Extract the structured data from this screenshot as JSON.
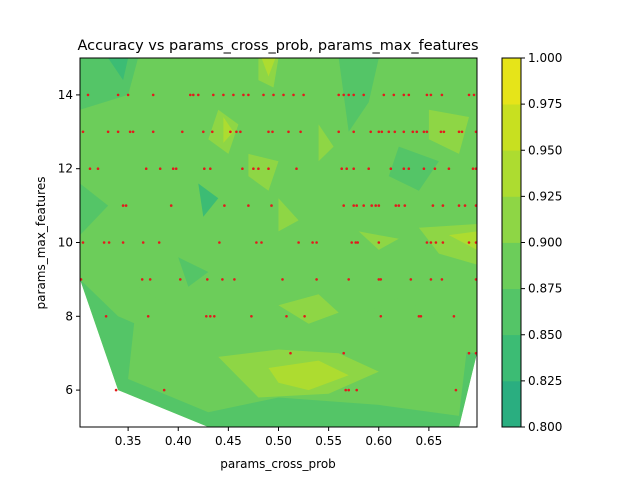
{
  "chart_data": {
    "type": "contour",
    "title": "Accuracy vs params_cross_prob, params_max_features",
    "xlabel": "params_cross_prob",
    "ylabel": "params_max_features",
    "xlim": [
      0.302,
      0.698
    ],
    "ylim": [
      5,
      15
    ],
    "x_ticks": [
      0.35,
      0.4,
      0.45,
      0.5,
      0.55,
      0.6,
      0.65
    ],
    "x_tick_labels": [
      "0.35",
      "0.40",
      "0.45",
      "0.50",
      "0.55",
      "0.60",
      "0.65"
    ],
    "y_ticks": [
      6,
      8,
      10,
      12,
      14
    ],
    "y_tick_labels": [
      "6",
      "8",
      "10",
      "12",
      "14"
    ],
    "colorbar": {
      "levels": [
        0.8,
        0.825,
        0.85,
        0.875,
        0.9,
        0.925,
        0.95,
        0.975,
        1.0
      ],
      "tick_labels": [
        "0.800",
        "0.825",
        "0.850",
        "0.875",
        "0.900",
        "0.925",
        "0.950",
        "0.975",
        "1.000"
      ],
      "colors": [
        "#2aae80",
        "#3cbc74",
        "#54c567",
        "#6ccd5a",
        "#8ed645",
        "#addc30",
        "#c8e020",
        "#e6e419"
      ]
    },
    "hull": [
      [
        0.302,
        9.0
      ],
      [
        0.302,
        15.0
      ],
      [
        0.698,
        15.0
      ],
      [
        0.698,
        7.0
      ],
      [
        0.68,
        5.0
      ],
      [
        0.43,
        5.0
      ],
      [
        0.34,
        6.0
      ]
    ],
    "patches": [
      {
        "level": 2,
        "points": [
          [
            0.302,
            9.0
          ],
          [
            0.34,
            8.0
          ],
          [
            0.4,
            7.3
          ],
          [
            0.48,
            7.2
          ],
          [
            0.56,
            7.5
          ],
          [
            0.64,
            7.2
          ],
          [
            0.698,
            7.0
          ],
          [
            0.68,
            5.0
          ],
          [
            0.43,
            5.0
          ],
          [
            0.34,
            6.0
          ]
        ]
      },
      {
        "level": 3,
        "points": [
          [
            0.36,
            8.8
          ],
          [
            0.42,
            7.8
          ],
          [
            0.48,
            7.6
          ],
          [
            0.56,
            7.8
          ],
          [
            0.62,
            8.5
          ],
          [
            0.69,
            7.6
          ],
          [
            0.68,
            5.3
          ],
          [
            0.6,
            5.6
          ],
          [
            0.5,
            5.8
          ],
          [
            0.43,
            5.4
          ],
          [
            0.35,
            6.3
          ]
        ]
      },
      {
        "level": 4,
        "points": [
          [
            0.44,
            6.9
          ],
          [
            0.5,
            7.1
          ],
          [
            0.56,
            7.0
          ],
          [
            0.6,
            6.5
          ],
          [
            0.55,
            5.9
          ],
          [
            0.48,
            5.8
          ]
        ]
      },
      {
        "level": 5,
        "points": [
          [
            0.49,
            6.6
          ],
          [
            0.54,
            6.8
          ],
          [
            0.57,
            6.4
          ],
          [
            0.53,
            6.0
          ],
          [
            0.5,
            6.2
          ]
        ]
      },
      {
        "level": 4,
        "points": [
          [
            0.5,
            8.3
          ],
          [
            0.54,
            8.6
          ],
          [
            0.56,
            8.1
          ],
          [
            0.53,
            7.8
          ]
        ]
      },
      {
        "level": 2,
        "points": [
          [
            0.302,
            15.0
          ],
          [
            0.36,
            15.0
          ],
          [
            0.35,
            14.0
          ],
          [
            0.302,
            13.6
          ]
        ]
      },
      {
        "level": 1,
        "points": [
          [
            0.33,
            15.0
          ],
          [
            0.35,
            15.0
          ],
          [
            0.345,
            14.4
          ]
        ]
      },
      {
        "level": 2,
        "points": [
          [
            0.56,
            15.0
          ],
          [
            0.6,
            15.0
          ],
          [
            0.59,
            13.8
          ],
          [
            0.57,
            13.0
          ]
        ]
      },
      {
        "level": 2,
        "points": [
          [
            0.302,
            11.6
          ],
          [
            0.33,
            11.0
          ],
          [
            0.302,
            10.2
          ]
        ]
      },
      {
        "level": 1,
        "points": [
          [
            0.42,
            11.6
          ],
          [
            0.44,
            11.2
          ],
          [
            0.425,
            10.7
          ]
        ]
      },
      {
        "level": 2,
        "points": [
          [
            0.62,
            12.6
          ],
          [
            0.66,
            12.2
          ],
          [
            0.64,
            11.4
          ],
          [
            0.61,
            11.8
          ]
        ]
      },
      {
        "level": 2,
        "points": [
          [
            0.4,
            9.6
          ],
          [
            0.43,
            9.2
          ],
          [
            0.41,
            8.8
          ]
        ]
      },
      {
        "level": 4,
        "points": [
          [
            0.48,
            15.0
          ],
          [
            0.5,
            15.0
          ],
          [
            0.495,
            14.2
          ],
          [
            0.48,
            14.4
          ]
        ]
      },
      {
        "level": 5,
        "points": [
          [
            0.483,
            15.0
          ],
          [
            0.497,
            15.0
          ],
          [
            0.49,
            14.5
          ]
        ]
      },
      {
        "level": 4,
        "points": [
          [
            0.44,
            13.6
          ],
          [
            0.46,
            13.2
          ],
          [
            0.45,
            12.4
          ],
          [
            0.43,
            12.8
          ]
        ]
      },
      {
        "level": 5,
        "points": [
          [
            0.445,
            13.4
          ],
          [
            0.455,
            13.0
          ],
          [
            0.445,
            12.7
          ]
        ]
      },
      {
        "level": 4,
        "points": [
          [
            0.47,
            12.4
          ],
          [
            0.5,
            12.2
          ],
          [
            0.49,
            11.4
          ],
          [
            0.47,
            11.8
          ]
        ]
      },
      {
        "level": 4,
        "points": [
          [
            0.54,
            13.2
          ],
          [
            0.555,
            12.6
          ],
          [
            0.54,
            12.2
          ]
        ]
      },
      {
        "level": 4,
        "points": [
          [
            0.65,
            13.6
          ],
          [
            0.69,
            13.4
          ],
          [
            0.68,
            12.4
          ],
          [
            0.65,
            12.8
          ]
        ]
      },
      {
        "level": 4,
        "points": [
          [
            0.58,
            10.3
          ],
          [
            0.62,
            10.1
          ],
          [
            0.6,
            9.8
          ]
        ]
      },
      {
        "level": 4,
        "points": [
          [
            0.64,
            10.4
          ],
          [
            0.698,
            10.5
          ],
          [
            0.698,
            9.4
          ],
          [
            0.66,
            9.7
          ]
        ]
      },
      {
        "level": 5,
        "points": [
          [
            0.67,
            10.2
          ],
          [
            0.698,
            10.3
          ],
          [
            0.698,
            9.8
          ]
        ]
      },
      {
        "level": 4,
        "points": [
          [
            0.5,
            11.2
          ],
          [
            0.52,
            10.6
          ],
          [
            0.5,
            10.3
          ]
        ]
      }
    ],
    "points": [
      [
        0.31,
        14
      ],
      [
        0.34,
        14
      ],
      [
        0.35,
        14
      ],
      [
        0.375,
        14
      ],
      [
        0.412,
        14
      ],
      [
        0.415,
        14
      ],
      [
        0.42,
        14
      ],
      [
        0.435,
        14
      ],
      [
        0.445,
        14
      ],
      [
        0.455,
        14
      ],
      [
        0.465,
        14
      ],
      [
        0.47,
        14
      ],
      [
        0.485,
        14
      ],
      [
        0.495,
        14
      ],
      [
        0.505,
        14
      ],
      [
        0.515,
        14
      ],
      [
        0.525,
        14
      ],
      [
        0.56,
        14
      ],
      [
        0.565,
        14
      ],
      [
        0.57,
        14
      ],
      [
        0.575,
        14
      ],
      [
        0.585,
        14
      ],
      [
        0.605,
        14
      ],
      [
        0.615,
        14
      ],
      [
        0.625,
        14
      ],
      [
        0.63,
        14
      ],
      [
        0.648,
        14
      ],
      [
        0.652,
        14
      ],
      [
        0.663,
        14
      ],
      [
        0.69,
        14
      ],
      [
        0.695,
        14
      ],
      [
        0.305,
        13
      ],
      [
        0.33,
        13
      ],
      [
        0.34,
        13
      ],
      [
        0.352,
        13
      ],
      [
        0.355,
        13
      ],
      [
        0.375,
        13
      ],
      [
        0.404,
        13
      ],
      [
        0.425,
        13
      ],
      [
        0.434,
        13
      ],
      [
        0.452,
        13
      ],
      [
        0.458,
        13
      ],
      [
        0.462,
        13
      ],
      [
        0.49,
        13
      ],
      [
        0.494,
        13
      ],
      [
        0.51,
        13
      ],
      [
        0.522,
        13
      ],
      [
        0.56,
        13
      ],
      [
        0.575,
        13
      ],
      [
        0.592,
        13
      ],
      [
        0.6,
        13
      ],
      [
        0.603,
        13
      ],
      [
        0.61,
        13
      ],
      [
        0.616,
        13
      ],
      [
        0.625,
        13
      ],
      [
        0.634,
        13
      ],
      [
        0.638,
        13
      ],
      [
        0.645,
        13
      ],
      [
        0.648,
        13
      ],
      [
        0.662,
        13
      ],
      [
        0.665,
        13
      ],
      [
        0.68,
        13
      ],
      [
        0.683,
        13
      ],
      [
        0.697,
        13
      ],
      [
        0.312,
        12
      ],
      [
        0.32,
        12
      ],
      [
        0.368,
        12
      ],
      [
        0.382,
        12
      ],
      [
        0.395,
        12
      ],
      [
        0.398,
        12
      ],
      [
        0.426,
        12
      ],
      [
        0.432,
        12
      ],
      [
        0.464,
        12
      ],
      [
        0.475,
        12
      ],
      [
        0.48,
        12
      ],
      [
        0.49,
        12
      ],
      [
        0.518,
        12
      ],
      [
        0.563,
        12
      ],
      [
        0.568,
        12
      ],
      [
        0.575,
        12
      ],
      [
        0.59,
        12
      ],
      [
        0.612,
        12
      ],
      [
        0.625,
        12
      ],
      [
        0.63,
        12
      ],
      [
        0.645,
        12
      ],
      [
        0.656,
        12
      ],
      [
        0.67,
        12
      ],
      [
        0.694,
        12
      ],
      [
        0.697,
        12
      ],
      [
        0.345,
        11
      ],
      [
        0.348,
        11
      ],
      [
        0.393,
        11
      ],
      [
        0.446,
        11
      ],
      [
        0.47,
        11
      ],
      [
        0.493,
        11
      ],
      [
        0.565,
        11
      ],
      [
        0.575,
        11
      ],
      [
        0.578,
        11
      ],
      [
        0.585,
        11
      ],
      [
        0.593,
        11
      ],
      [
        0.597,
        11
      ],
      [
        0.6,
        11
      ],
      [
        0.617,
        11
      ],
      [
        0.62,
        11
      ],
      [
        0.626,
        11
      ],
      [
        0.654,
        11
      ],
      [
        0.664,
        11
      ],
      [
        0.68,
        11
      ],
      [
        0.686,
        11
      ],
      [
        0.697,
        11
      ],
      [
        0.305,
        10
      ],
      [
        0.326,
        10
      ],
      [
        0.331,
        10
      ],
      [
        0.345,
        10
      ],
      [
        0.365,
        10
      ],
      [
        0.381,
        10
      ],
      [
        0.441,
        10
      ],
      [
        0.478,
        10
      ],
      [
        0.483,
        10
      ],
      [
        0.52,
        10
      ],
      [
        0.534,
        10
      ],
      [
        0.538,
        10
      ],
      [
        0.573,
        10
      ],
      [
        0.577,
        10
      ],
      [
        0.579,
        10
      ],
      [
        0.6,
        10
      ],
      [
        0.648,
        10
      ],
      [
        0.652,
        10
      ],
      [
        0.657,
        10
      ],
      [
        0.664,
        10
      ],
      [
        0.69,
        10
      ],
      [
        0.697,
        10
      ],
      [
        0.303,
        9
      ],
      [
        0.364,
        9
      ],
      [
        0.372,
        9
      ],
      [
        0.402,
        9
      ],
      [
        0.429,
        9
      ],
      [
        0.444,
        9
      ],
      [
        0.456,
        9
      ],
      [
        0.504,
        9
      ],
      [
        0.538,
        9
      ],
      [
        0.57,
        9
      ],
      [
        0.6,
        9
      ],
      [
        0.602,
        9
      ],
      [
        0.632,
        9
      ],
      [
        0.652,
        9
      ],
      [
        0.663,
        9
      ],
      [
        0.697,
        9
      ],
      [
        0.328,
        8
      ],
      [
        0.37,
        8
      ],
      [
        0.428,
        8
      ],
      [
        0.432,
        8
      ],
      [
        0.436,
        8
      ],
      [
        0.473,
        8
      ],
      [
        0.508,
        8
      ],
      [
        0.526,
        8
      ],
      [
        0.602,
        8
      ],
      [
        0.64,
        8
      ],
      [
        0.642,
        8
      ],
      [
        0.675,
        8
      ],
      [
        0.512,
        7
      ],
      [
        0.565,
        7
      ],
      [
        0.69,
        7
      ],
      [
        0.697,
        7
      ],
      [
        0.338,
        6
      ],
      [
        0.386,
        6
      ],
      [
        0.567,
        6
      ],
      [
        0.57,
        6
      ],
      [
        0.578,
        6
      ],
      [
        0.677,
        6
      ]
    ]
  }
}
